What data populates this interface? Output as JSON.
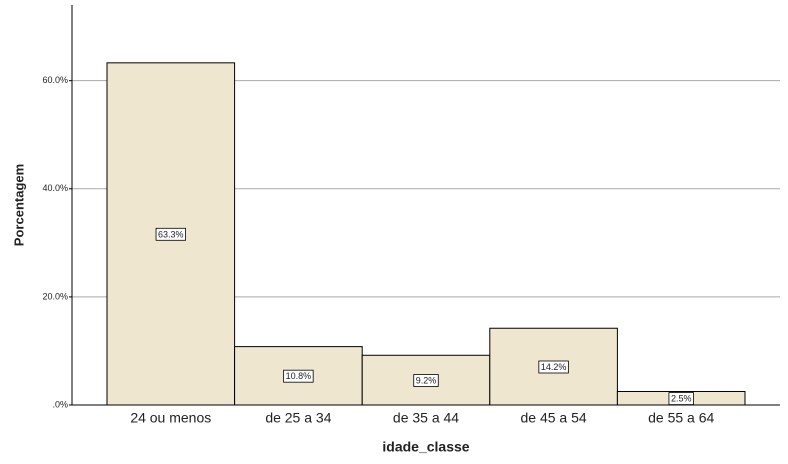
{
  "chart_data": {
    "type": "bar",
    "x_label": "idade_classe",
    "y_label": "Porcentagem",
    "categories": [
      "24 ou menos",
      "de 25 a 34",
      "de 35 a 44",
      "de 45 a 54",
      "de 55 a 64"
    ],
    "values": [
      63.3,
      10.8,
      9.2,
      14.2,
      2.5
    ],
    "value_labels": [
      "63.3%",
      "10.8%",
      "9.2%",
      "14.2%",
      "2.5%"
    ],
    "color": "#efe6d0",
    "ylim": [
      0,
      74
    ],
    "yticks": [
      {
        "value": 0,
        "label": ".0%"
      },
      {
        "value": 20,
        "label": "20.0%"
      },
      {
        "value": 40,
        "label": "40.0%"
      },
      {
        "value": 60,
        "label": "60.0%"
      }
    ],
    "grid": true
  }
}
